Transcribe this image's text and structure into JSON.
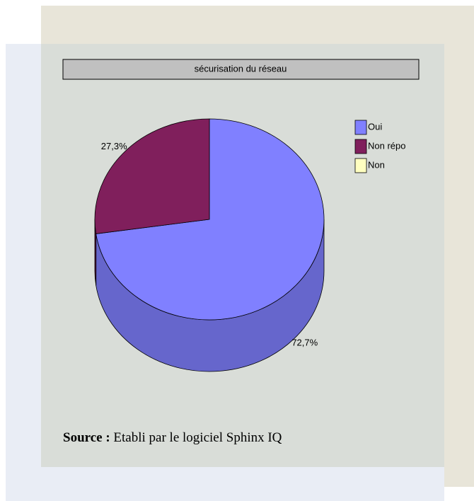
{
  "chart_data": {
    "type": "pie",
    "title": "sécurisation du réseau",
    "categories": [
      "Oui",
      "Non répo",
      "Non"
    ],
    "values": [
      72.7,
      27.3,
      0
    ],
    "value_labels": [
      "72,7%",
      "27,3%",
      null
    ],
    "colors": [
      "#8080ff",
      "#801f5c",
      "#ffffc0"
    ],
    "side_colors": [
      "#6666cc",
      "#5f1545",
      "#ccc99a"
    ],
    "legend": "right"
  },
  "source": {
    "label": "Source :",
    "text": "Etabli par le logiciel Sphinx IQ"
  }
}
